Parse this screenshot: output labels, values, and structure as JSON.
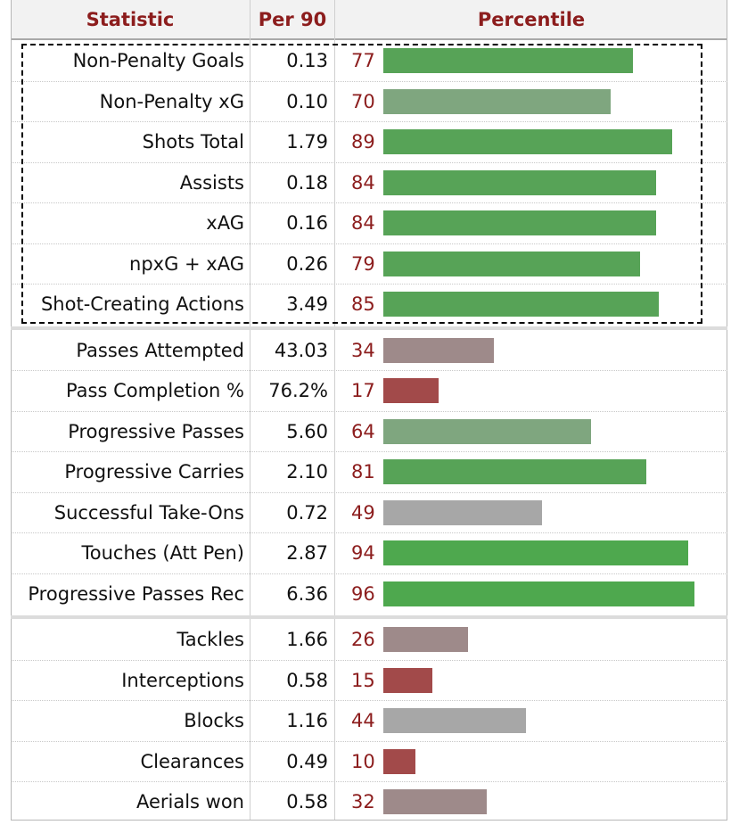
{
  "header": {
    "statistic_label": "Statistic",
    "per90_label": "Per 90",
    "percentile_label": "Percentile"
  },
  "colors": {
    "header_text": "#8c1d1d",
    "percentile_text": "#8c1d1d",
    "bar_scale": [
      "#a24a4a",
      "#9e8a8a",
      "#a7a7a7",
      "#7fa67f",
      "#4ea84e"
    ]
  },
  "chart_data": {
    "type": "table",
    "columns": [
      "Statistic",
      "Per 90",
      "Percentile"
    ],
    "percentile_range": [
      0,
      100
    ],
    "highlighted_rows": [
      0,
      6
    ],
    "groups": [
      {
        "rows": [
          {
            "stat": "Non-Penalty Goals",
            "per90": "0.13",
            "percentile": 77
          },
          {
            "stat": "Non-Penalty xG",
            "per90": "0.10",
            "percentile": 70
          },
          {
            "stat": "Shots Total",
            "per90": "1.79",
            "percentile": 89
          },
          {
            "stat": "Assists",
            "per90": "0.18",
            "percentile": 84
          },
          {
            "stat": "xAG",
            "per90": "0.16",
            "percentile": 84
          },
          {
            "stat": "npxG + xAG",
            "per90": "0.26",
            "percentile": 79
          },
          {
            "stat": "Shot-Creating Actions",
            "per90": "3.49",
            "percentile": 85
          }
        ]
      },
      {
        "rows": [
          {
            "stat": "Passes Attempted",
            "per90": "43.03",
            "percentile": 34
          },
          {
            "stat": "Pass Completion %",
            "per90": "76.2%",
            "percentile": 17
          },
          {
            "stat": "Progressive Passes",
            "per90": "5.60",
            "percentile": 64
          },
          {
            "stat": "Progressive Carries",
            "per90": "2.10",
            "percentile": 81
          },
          {
            "stat": "Successful Take-Ons",
            "per90": "0.72",
            "percentile": 49
          },
          {
            "stat": "Touches (Att Pen)",
            "per90": "2.87",
            "percentile": 94
          },
          {
            "stat": "Progressive Passes Rec",
            "per90": "6.36",
            "percentile": 96
          }
        ]
      },
      {
        "rows": [
          {
            "stat": "Tackles",
            "per90": "1.66",
            "percentile": 26
          },
          {
            "stat": "Interceptions",
            "per90": "0.58",
            "percentile": 15
          },
          {
            "stat": "Blocks",
            "per90": "1.16",
            "percentile": 44
          },
          {
            "stat": "Clearances",
            "per90": "0.49",
            "percentile": 10
          },
          {
            "stat": "Aerials won",
            "per90": "0.58",
            "percentile": 32
          }
        ]
      }
    ]
  }
}
